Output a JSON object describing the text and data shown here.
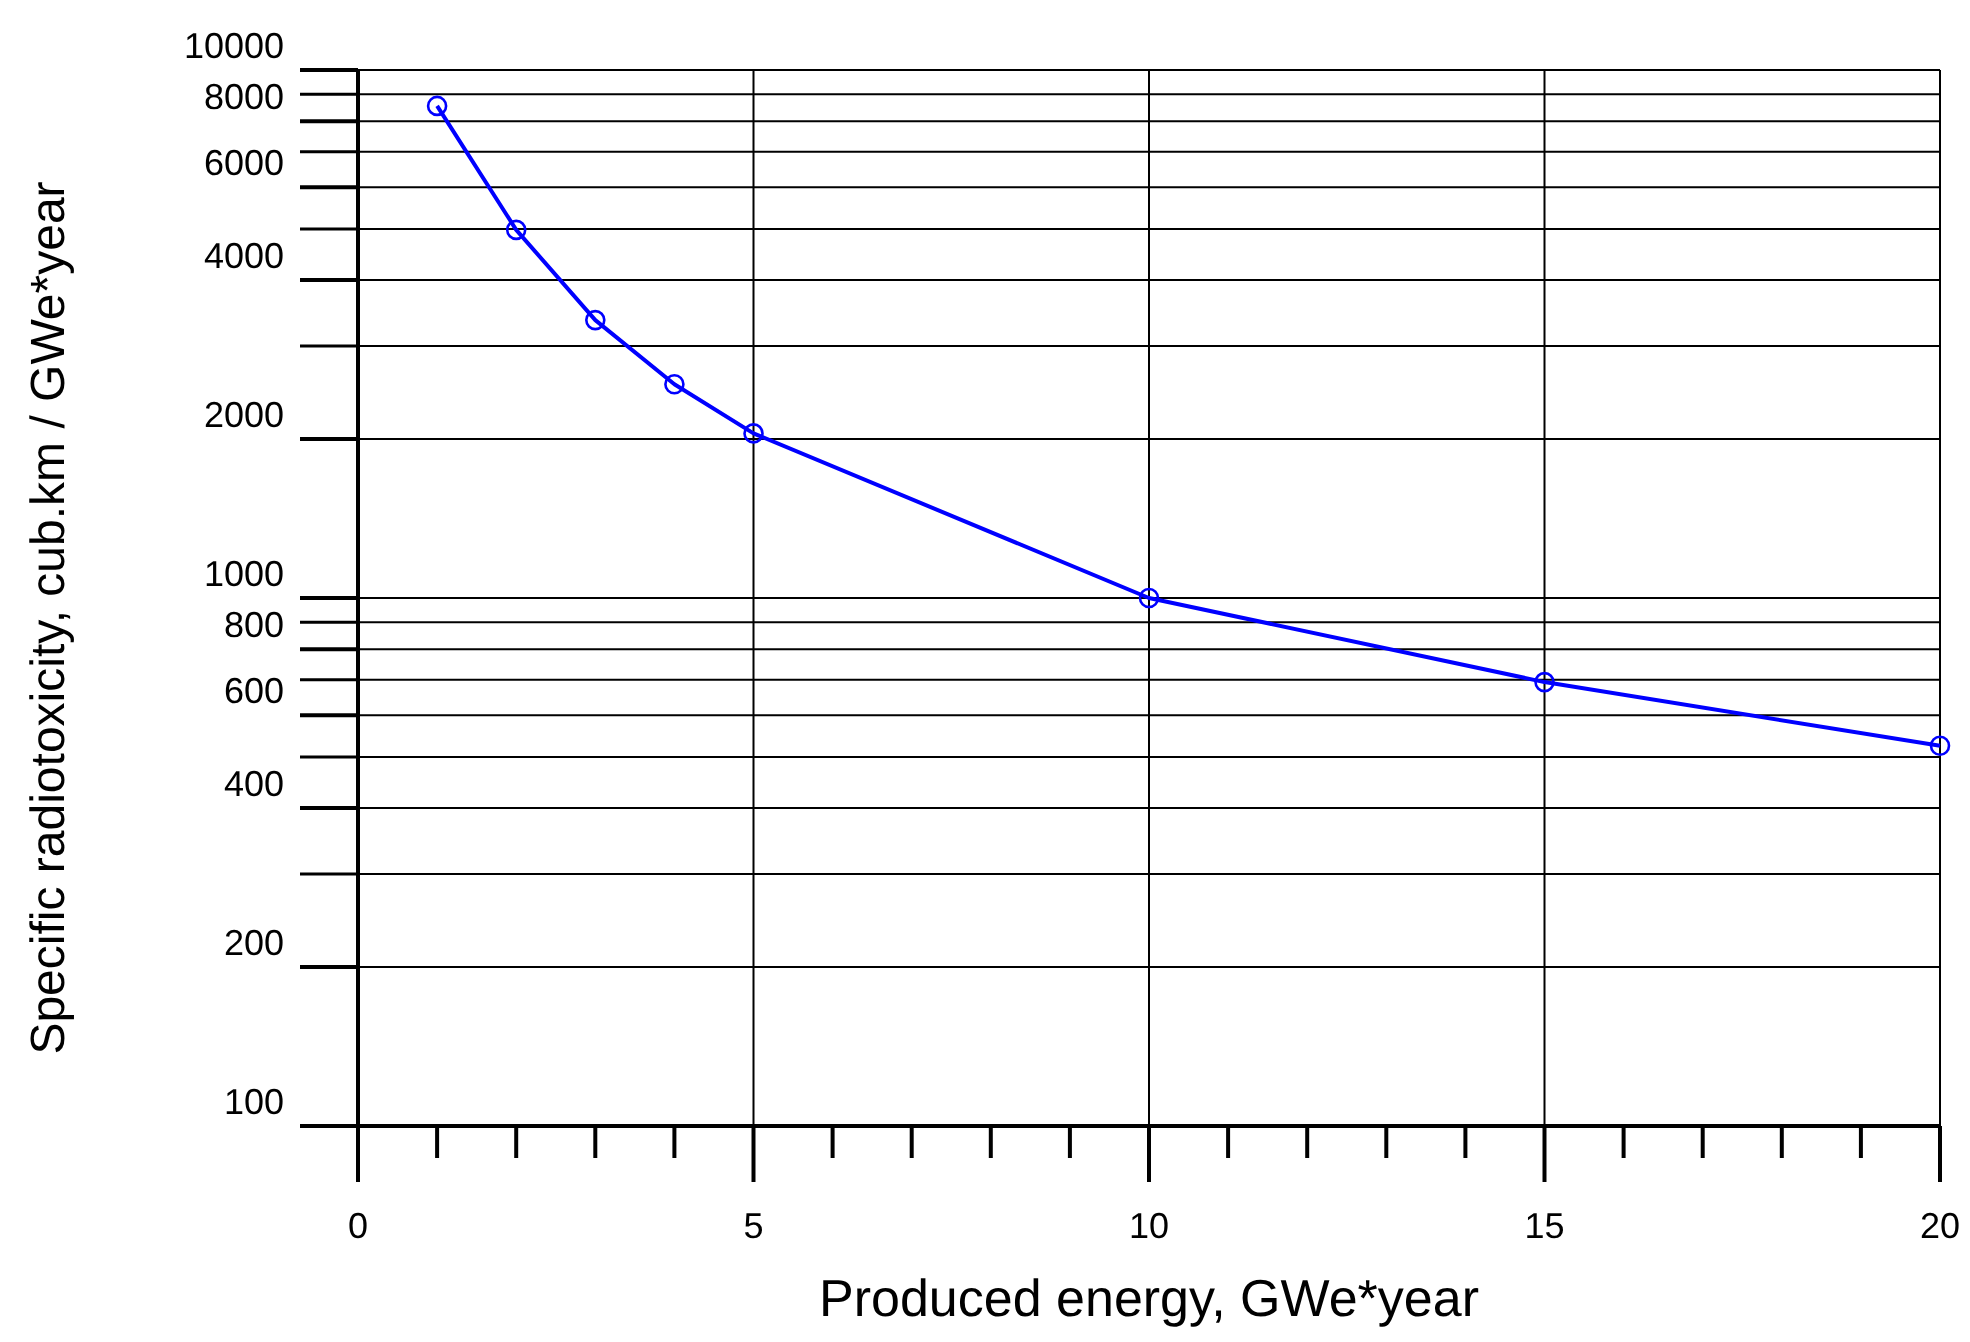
{
  "chart_data": {
    "type": "line",
    "xlabel": "Produced energy, GWe*year",
    "ylabel": "Specific radiotoxicity, cub.km / GWe*year",
    "x": [
      1,
      2,
      3,
      4,
      5,
      10,
      15,
      20
    ],
    "series": [
      {
        "color": "#0000ff",
        "values": [
          8550,
          4980,
          3360,
          2540,
          2050,
          1000,
          693,
          525
        ]
      }
    ],
    "log": "y",
    "marker": "circle",
    "line_style": "solid",
    "grid": true,
    "xlim": [
      0,
      20
    ],
    "ylim": [
      100,
      10000
    ],
    "xticks": [
      0,
      {
        "value": 1,
        "label": null
      },
      {
        "value": 2,
        "label": null
      },
      {
        "value": 3,
        "label": null
      },
      {
        "value": 4,
        "label": null
      },
      5,
      {
        "value": 6,
        "label": null
      },
      {
        "value": 7,
        "label": null
      },
      {
        "value": 8,
        "label": null
      },
      {
        "value": 9,
        "label": null
      },
      10,
      {
        "value": 11,
        "label": null
      },
      {
        "value": 12,
        "label": null
      },
      {
        "value": 13,
        "label": null
      },
      {
        "value": 14,
        "label": null
      },
      15,
      {
        "value": 16,
        "label": null
      },
      {
        "value": 17,
        "label": null
      },
      {
        "value": 18,
        "label": null
      },
      {
        "value": 19,
        "label": null
      },
      20
    ],
    "yticks": [
      100,
      200,
      {
        "value": 300,
        "label": null
      },
      400,
      {
        "value": 500,
        "label": null
      },
      600,
      {
        "value": 700,
        "label": null
      },
      800,
      {
        "value": 900,
        "label": null
      },
      1000,
      2000,
      {
        "value": 3000,
        "label": null
      },
      4000,
      {
        "value": 5000,
        "label": null
      },
      6000,
      {
        "value": 7000,
        "label": null
      },
      8000,
      {
        "value": 9000,
        "label": null
      },
      10000
    ]
  }
}
